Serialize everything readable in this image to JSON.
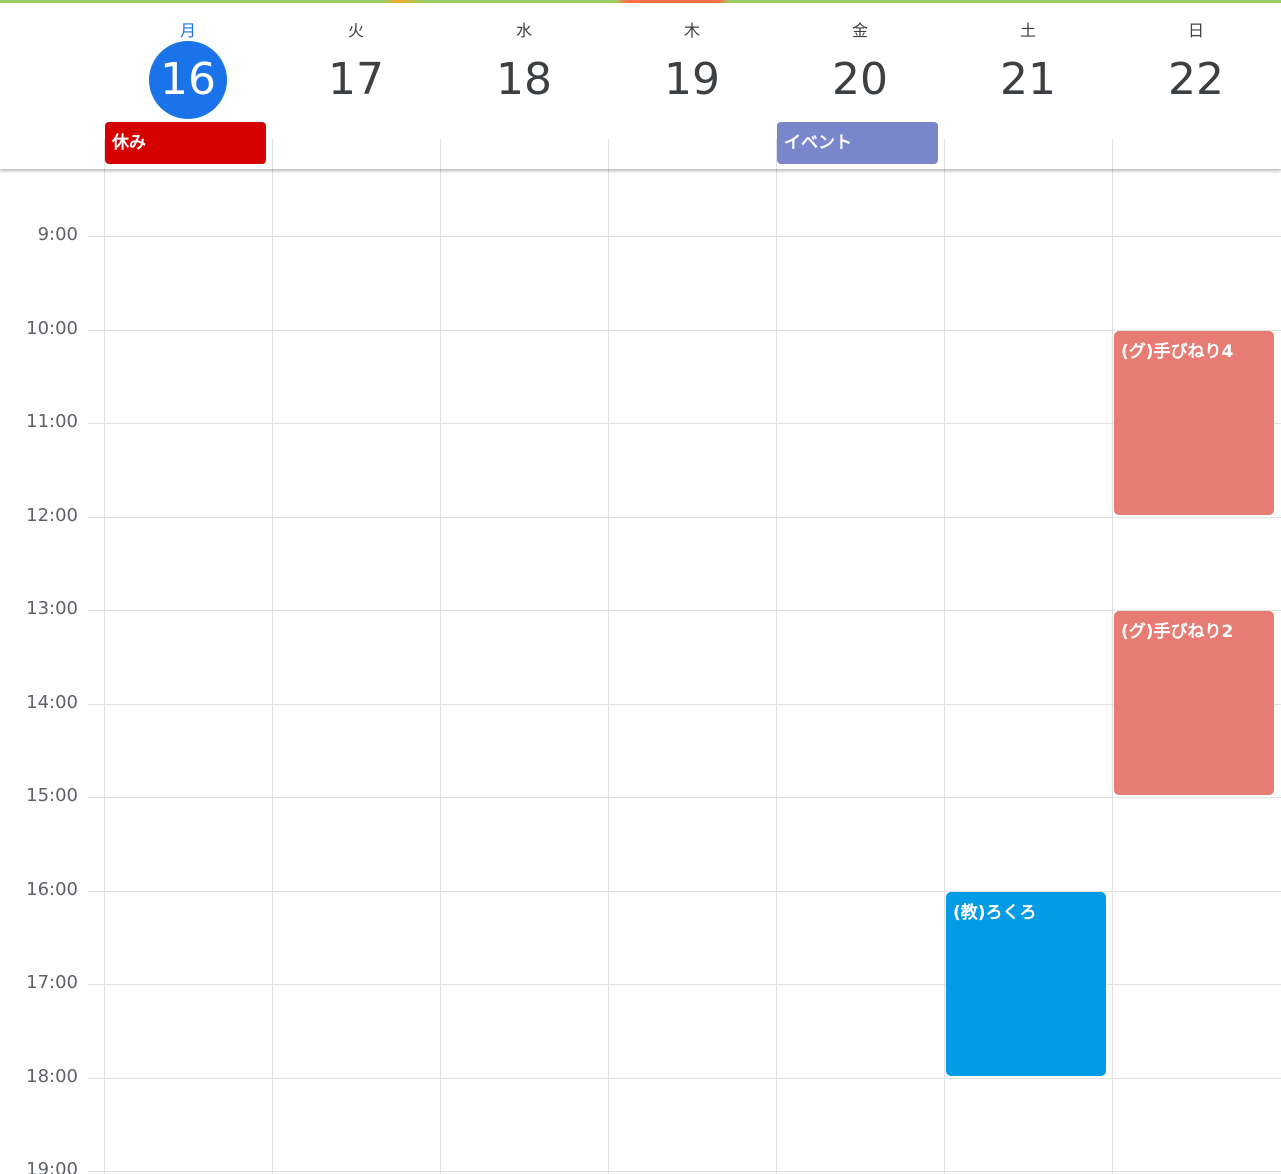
{
  "days": [
    {
      "dow": "月",
      "num": "16",
      "today": true
    },
    {
      "dow": "火",
      "num": "17",
      "today": false
    },
    {
      "dow": "水",
      "num": "18",
      "today": false
    },
    {
      "dow": "木",
      "num": "19",
      "today": false
    },
    {
      "dow": "金",
      "num": "20",
      "today": false
    },
    {
      "dow": "土",
      "num": "21",
      "today": false
    },
    {
      "dow": "日",
      "num": "22",
      "today": false
    }
  ],
  "all_day_events": [
    {
      "title": "休み",
      "day": 0,
      "color": "#d50000"
    },
    {
      "title": "イベント",
      "day": 4,
      "color": "#7986cb"
    }
  ],
  "time_labels": [
    "9:00",
    "10:00",
    "11:00",
    "12:00",
    "13:00",
    "14:00",
    "15:00",
    "16:00",
    "17:00",
    "18:00",
    "19:00"
  ],
  "events": [
    {
      "title": "(グ)手びねり4",
      "day": 6,
      "start_hour": 10,
      "end_hour": 12,
      "color": "#e67c73"
    },
    {
      "title": "(グ)手びねり2",
      "day": 6,
      "start_hour": 13,
      "end_hour": 15,
      "color": "#e67c73"
    },
    {
      "title": "(教)ろくろ",
      "day": 5,
      "start_hour": 16,
      "end_hour": 18,
      "color": "#039be5"
    }
  ],
  "colors": {
    "today_accent": "#1a73e8"
  }
}
